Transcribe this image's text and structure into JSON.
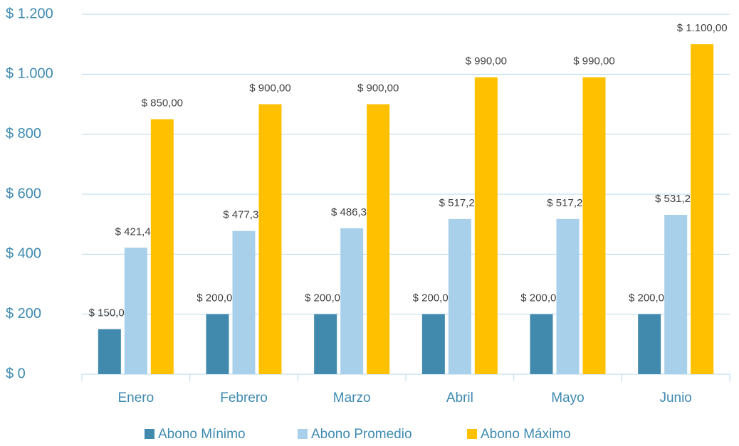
{
  "chart_data": {
    "type": "bar",
    "categories": [
      "Enero",
      "Febrero",
      "Marzo",
      "Abril",
      "Mayo",
      "Junio"
    ],
    "series": [
      {
        "name": "Abono Mínimo",
        "color": "#4289AE",
        "values": [
          150,
          200,
          200,
          200,
          200,
          200
        ],
        "value_labels": [
          "$ 150,00",
          "$ 200,00",
          "$ 200,00",
          "$ 200,00",
          "$ 200,00",
          "$ 200,00"
        ]
      },
      {
        "name": "Abono Promedio",
        "color": "#A8D0EA",
        "values": [
          421.42,
          477.37,
          486.32,
          517.27,
          517.27,
          531.23
        ],
        "value_labels": [
          "$ 421,42",
          "$ 477,37",
          "$ 486,32",
          "$ 517,27",
          "$ 517,27",
          "$ 531,23"
        ]
      },
      {
        "name": "Abono Máximo",
        "color": "#FFC000",
        "values": [
          850,
          900,
          900,
          990,
          990,
          1100
        ],
        "value_labels": [
          "$ 850,00",
          "$ 900,00",
          "$ 900,00",
          "$ 990,00",
          "$ 990,00",
          "$ 1.100,00"
        ]
      }
    ],
    "ylim": [
      0,
      1200
    ],
    "yticks": [
      {
        "value": 0,
        "label": "$ 0"
      },
      {
        "value": 200,
        "label": "$ 200"
      },
      {
        "value": 400,
        "label": "$ 400"
      },
      {
        "value": 600,
        "label": "$ 600"
      },
      {
        "value": 800,
        "label": "$ 800"
      },
      {
        "value": 1000,
        "label": "$ 1.000"
      },
      {
        "value": 1200,
        "label": "$ 1.200"
      }
    ],
    "grid": true,
    "legend": "bottom"
  }
}
